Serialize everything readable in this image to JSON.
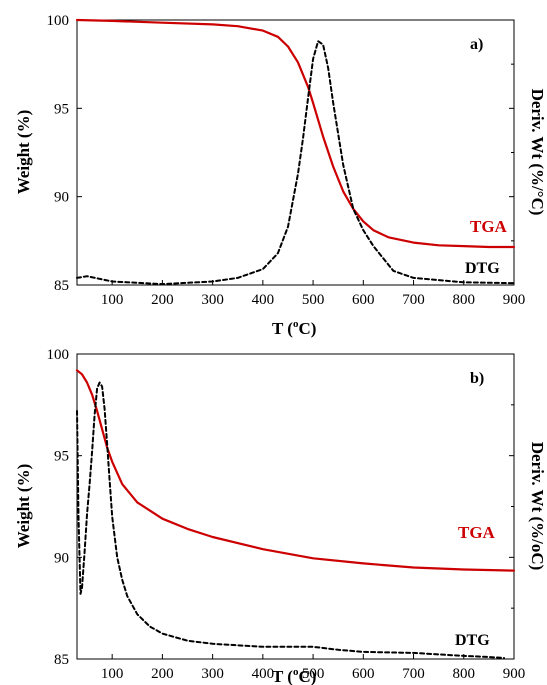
{
  "chart_data": [
    {
      "type": "line",
      "panel_label": "a)",
      "xlabel_base": "T (",
      "xlabel_sup": "o",
      "xlabel_tail": "C)",
      "ylabel": "Weight (%)",
      "y2label": "Deriv. Wt (%/°C)",
      "xlim": [
        30,
        900
      ],
      "ylim": [
        85,
        100
      ],
      "xticks": [
        100,
        200,
        300,
        400,
        500,
        600,
        700,
        800,
        900
      ],
      "yticks": [
        85,
        90,
        95,
        100
      ],
      "grid": false,
      "series": [
        {
          "name": "TGA",
          "color": "#cc0000",
          "style": "solid",
          "axis": "left",
          "x": [
            30,
            100,
            200,
            300,
            350,
            400,
            430,
            450,
            470,
            490,
            500,
            520,
            540,
            560,
            580,
            600,
            620,
            650,
            700,
            750,
            800,
            850,
            900
          ],
          "y": [
            100,
            99.95,
            99.85,
            99.75,
            99.65,
            99.4,
            99.05,
            98.5,
            97.6,
            96.2,
            95.3,
            93.4,
            91.7,
            90.3,
            89.3,
            88.6,
            88.1,
            87.7,
            87.4,
            87.25,
            87.2,
            87.15,
            87.15
          ]
        },
        {
          "name": "DTG",
          "color": "#000000",
          "style": "dashed",
          "axis": "right",
          "x": [
            30,
            50,
            100,
            200,
            300,
            350,
            400,
            430,
            450,
            470,
            480,
            490,
            500,
            510,
            520,
            530,
            540,
            560,
            580,
            600,
            620,
            640,
            660,
            700,
            800,
            900
          ],
          "y": [
            85.4,
            85.5,
            85.2,
            85.05,
            85.2,
            85.4,
            85.9,
            86.8,
            88.3,
            91.3,
            93.3,
            95.6,
            97.8,
            98.8,
            98.6,
            97.3,
            95.3,
            91.8,
            89.3,
            88.1,
            87.2,
            86.5,
            85.8,
            85.4,
            85.15,
            85.1
          ]
        }
      ]
    },
    {
      "type": "line",
      "panel_label": "b)",
      "xlabel_base": "T (",
      "xlabel_sup": "o",
      "xlabel_tail": "C)",
      "ylabel": "Weight (%)",
      "y2label": "Deriv. Wt (%/oC)",
      "xlim": [
        30,
        900
      ],
      "ylim": [
        85,
        100
      ],
      "xticks": [
        100,
        200,
        300,
        400,
        500,
        600,
        700,
        800,
        900
      ],
      "yticks": [
        85,
        90,
        95,
        100
      ],
      "grid": false,
      "series": [
        {
          "name": "TGA",
          "color": "#cc0000",
          "style": "solid",
          "axis": "left",
          "x": [
            30,
            40,
            50,
            60,
            70,
            80,
            90,
            100,
            120,
            150,
            200,
            250,
            300,
            400,
            500,
            600,
            700,
            800,
            900
          ],
          "y": [
            99.2,
            99.0,
            98.6,
            98.0,
            97.2,
            96.3,
            95.4,
            94.7,
            93.6,
            92.7,
            91.9,
            91.4,
            91.0,
            90.4,
            89.95,
            89.7,
            89.5,
            89.4,
            89.35
          ]
        },
        {
          "name": "DTG",
          "color": "#000000",
          "style": "dashed",
          "axis": "right",
          "x": [
            30,
            33,
            37,
            40,
            45,
            50,
            55,
            60,
            65,
            70,
            75,
            80,
            85,
            90,
            95,
            100,
            110,
            120,
            130,
            150,
            175,
            200,
            250,
            300,
            400,
            500,
            550,
            600,
            700,
            800,
            850,
            880
          ],
          "y": [
            97.2,
            92.0,
            88.2,
            88.5,
            90.2,
            92.1,
            93.6,
            95.2,
            97.0,
            98.3,
            98.6,
            98.4,
            97.3,
            95.6,
            93.8,
            92.0,
            90.0,
            88.9,
            88.1,
            87.2,
            86.6,
            86.25,
            85.9,
            85.75,
            85.6,
            85.6,
            85.45,
            85.35,
            85.3,
            85.15,
            85.1,
            85.05
          ]
        }
      ]
    }
  ]
}
